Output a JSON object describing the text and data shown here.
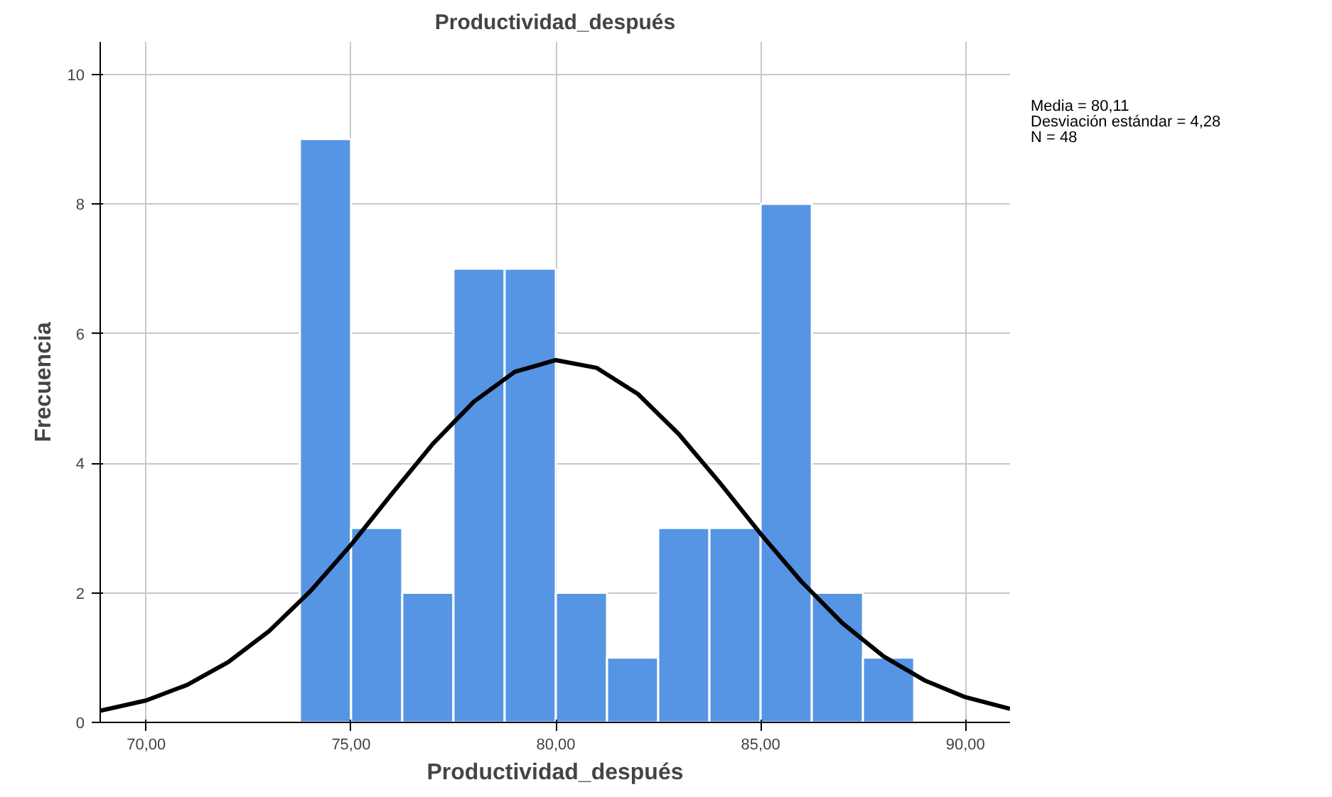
{
  "chart_data": {
    "type": "histogram",
    "title": "Productividad_después",
    "xlabel": "Productividad_después",
    "ylabel": "Frecuencia",
    "bins": [
      73.75,
      75,
      76.25,
      77.5,
      78.75,
      80,
      81.25,
      82.5,
      83.75,
      85,
      86.25,
      87.5,
      88.75
    ],
    "values": [
      9,
      3,
      2,
      7,
      7,
      2,
      1,
      3,
      3,
      8,
      2,
      1
    ],
    "color": "#5694e4",
    "series": [
      {
        "type": "line",
        "color": "#000000",
        "x": [
          68.875,
          70,
          71,
          72,
          73,
          74,
          75,
          76,
          77,
          78,
          79,
          80,
          81,
          82,
          83,
          84,
          85,
          86,
          87,
          88,
          89,
          90,
          91.09
        ],
        "values": [
          0.18,
          0.34,
          0.58,
          0.93,
          1.41,
          2.02,
          2.74,
          3.53,
          4.3,
          4.95,
          5.41,
          5.59,
          5.47,
          5.07,
          4.45,
          3.7,
          2.91,
          2.17,
          1.53,
          1.02,
          0.65,
          0.39,
          0.21
        ]
      }
    ],
    "xlim": [
      68.875,
      91.09
    ],
    "ylim": [
      0,
      10.5
    ],
    "xticks": [
      {
        "value": 70,
        "label": "70,00"
      },
      {
        "value": 75,
        "label": "75,00"
      },
      {
        "value": 80,
        "label": "80,00"
      },
      {
        "value": 85,
        "label": "85,00"
      },
      {
        "value": 90,
        "label": "90,00"
      }
    ],
    "yticks": [
      0,
      2,
      4,
      6,
      8,
      10
    ],
    "grid": true,
    "annotations": [
      "Media = 80,11",
      "Desviación estándar = 4,28",
      "N = 48"
    ]
  }
}
